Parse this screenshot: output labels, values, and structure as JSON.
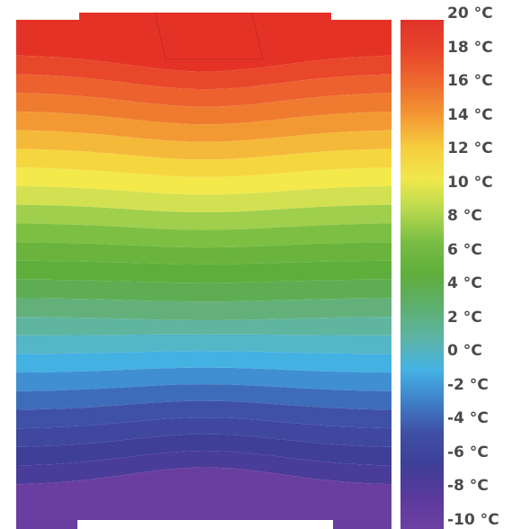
{
  "diagram": {
    "kind": "thermal-contour-plot",
    "unit": "°C",
    "range": {
      "min": -10,
      "max": 20
    },
    "band_colors": [
      "#e43326",
      "#e8472a",
      "#ec612d",
      "#ef7b30",
      "#f29933",
      "#f5b93a",
      "#f6d63f",
      "#f3e94b",
      "#d3e051",
      "#9fcf4c",
      "#7dbf43",
      "#6ab43d",
      "#5eae3b",
      "#5fad53",
      "#63b07a",
      "#5fb59e",
      "#54b6c6",
      "#44b1e3",
      "#3f8fd2",
      "#3d6dba",
      "#3f51a6",
      "#3f479e",
      "#3f3f98",
      "#4a3c99",
      "#6a3ea0"
    ]
  },
  "color_scale": {
    "labels": [
      "20 °C",
      "18 °C",
      "16 °C",
      "14 °C",
      "12 °C",
      "10 °C",
      "8 °C",
      "6 °C",
      "4 °C",
      "2 °C",
      "0 °C",
      "-2 °C",
      "-4 °C",
      "-6 °C",
      "-8 °C",
      "-10 °C"
    ],
    "gradient_colors": [
      "#e0332a",
      "#e8462b",
      "#ee6b2f",
      "#f39733",
      "#f6cc3e",
      "#f0e84c",
      "#b6d84f",
      "#78bd44",
      "#5fae3b",
      "#5daf6d",
      "#5db4a6",
      "#45b2e4",
      "#3f7fc8",
      "#3f4fa4",
      "#3f3f98",
      "#5a3a9c",
      "#6d3fa2"
    ]
  }
}
